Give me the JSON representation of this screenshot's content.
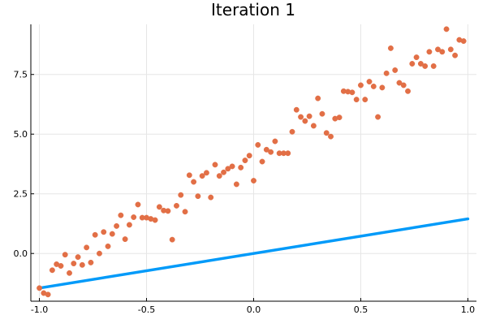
{
  "chart_data": {
    "type": "scatter",
    "title": "Iteration 1",
    "xlabel": "",
    "ylabel": "",
    "xlim": [
      -1.04,
      1.04
    ],
    "ylim": [
      -2.0,
      9.6
    ],
    "x_ticks": [
      -1.0,
      -0.5,
      0.0,
      0.5,
      1.0
    ],
    "x_tick_labels": [
      "-1.0",
      "-0.5",
      "0.0",
      "0.5",
      "1.0"
    ],
    "y_ticks": [
      0.0,
      2.5,
      5.0,
      7.5
    ],
    "y_tick_labels": [
      "0.0",
      "2.5",
      "5.0",
      "7.5"
    ],
    "grid": true,
    "legend": "none",
    "series": [
      {
        "type": "line",
        "color": "#009af9",
        "x": [
          -1.0,
          1.0
        ],
        "y": [
          -1.45,
          1.45
        ]
      },
      {
        "type": "scatter",
        "color": "#e26f46",
        "points": [
          [
            -1.0,
            -1.45
          ],
          [
            -0.98,
            -1.66
          ],
          [
            -0.96,
            -1.72
          ],
          [
            -0.94,
            -0.7
          ],
          [
            -0.92,
            -0.45
          ],
          [
            -0.9,
            -0.52
          ],
          [
            -0.88,
            -0.05
          ],
          [
            -0.86,
            -0.82
          ],
          [
            -0.84,
            -0.42
          ],
          [
            -0.82,
            -0.15
          ],
          [
            -0.8,
            -0.48
          ],
          [
            -0.78,
            0.25
          ],
          [
            -0.76,
            -0.38
          ],
          [
            -0.74,
            0.78
          ],
          [
            -0.72,
            0.0
          ],
          [
            -0.7,
            0.9
          ],
          [
            -0.68,
            0.3
          ],
          [
            -0.66,
            0.82
          ],
          [
            -0.64,
            1.15
          ],
          [
            -0.62,
            1.6
          ],
          [
            -0.6,
            0.6
          ],
          [
            -0.58,
            1.2
          ],
          [
            -0.56,
            1.52
          ],
          [
            -0.54,
            2.05
          ],
          [
            -0.52,
            1.5
          ],
          [
            -0.5,
            1.5
          ],
          [
            -0.48,
            1.45
          ],
          [
            -0.46,
            1.4
          ],
          [
            -0.44,
            1.95
          ],
          [
            -0.42,
            1.8
          ],
          [
            -0.4,
            1.78
          ],
          [
            -0.38,
            0.58
          ],
          [
            -0.36,
            2.0
          ],
          [
            -0.34,
            2.45
          ],
          [
            -0.32,
            1.75
          ],
          [
            -0.3,
            3.28
          ],
          [
            -0.28,
            3.0
          ],
          [
            -0.26,
            2.4
          ],
          [
            -0.24,
            3.25
          ],
          [
            -0.22,
            3.38
          ],
          [
            -0.2,
            2.35
          ],
          [
            -0.18,
            3.72
          ],
          [
            -0.16,
            3.25
          ],
          [
            -0.14,
            3.4
          ],
          [
            -0.12,
            3.55
          ],
          [
            -0.1,
            3.65
          ],
          [
            -0.08,
            2.9
          ],
          [
            -0.06,
            3.6
          ],
          [
            -0.04,
            3.9
          ],
          [
            -0.02,
            4.1
          ],
          [
            0.0,
            3.05
          ],
          [
            0.02,
            4.55
          ],
          [
            0.04,
            3.85
          ],
          [
            0.06,
            4.35
          ],
          [
            0.08,
            4.25
          ],
          [
            0.1,
            4.7
          ],
          [
            0.12,
            4.2
          ],
          [
            0.14,
            4.2
          ],
          [
            0.16,
            4.2
          ],
          [
            0.18,
            5.1
          ],
          [
            0.2,
            6.02
          ],
          [
            0.22,
            5.72
          ],
          [
            0.24,
            5.55
          ],
          [
            0.26,
            5.75
          ],
          [
            0.28,
            5.35
          ],
          [
            0.3,
            6.5
          ],
          [
            0.32,
            5.85
          ],
          [
            0.34,
            5.05
          ],
          [
            0.36,
            4.9
          ],
          [
            0.38,
            5.65
          ],
          [
            0.4,
            5.7
          ],
          [
            0.42,
            6.8
          ],
          [
            0.44,
            6.78
          ],
          [
            0.46,
            6.75
          ],
          [
            0.48,
            6.45
          ],
          [
            0.5,
            7.05
          ],
          [
            0.52,
            6.45
          ],
          [
            0.54,
            7.2
          ],
          [
            0.56,
            7.0
          ],
          [
            0.58,
            5.72
          ],
          [
            0.6,
            6.95
          ],
          [
            0.62,
            7.55
          ],
          [
            0.64,
            8.6
          ],
          [
            0.66,
            7.68
          ],
          [
            0.68,
            7.15
          ],
          [
            0.7,
            7.05
          ],
          [
            0.72,
            6.8
          ],
          [
            0.74,
            7.95
          ],
          [
            0.76,
            8.22
          ],
          [
            0.78,
            7.95
          ],
          [
            0.8,
            7.85
          ],
          [
            0.82,
            8.45
          ],
          [
            0.84,
            7.85
          ],
          [
            0.86,
            8.55
          ],
          [
            0.88,
            8.45
          ],
          [
            0.9,
            9.4
          ],
          [
            0.92,
            8.55
          ],
          [
            0.94,
            8.3
          ],
          [
            0.96,
            8.95
          ],
          [
            0.98,
            8.9
          ]
        ]
      }
    ]
  }
}
